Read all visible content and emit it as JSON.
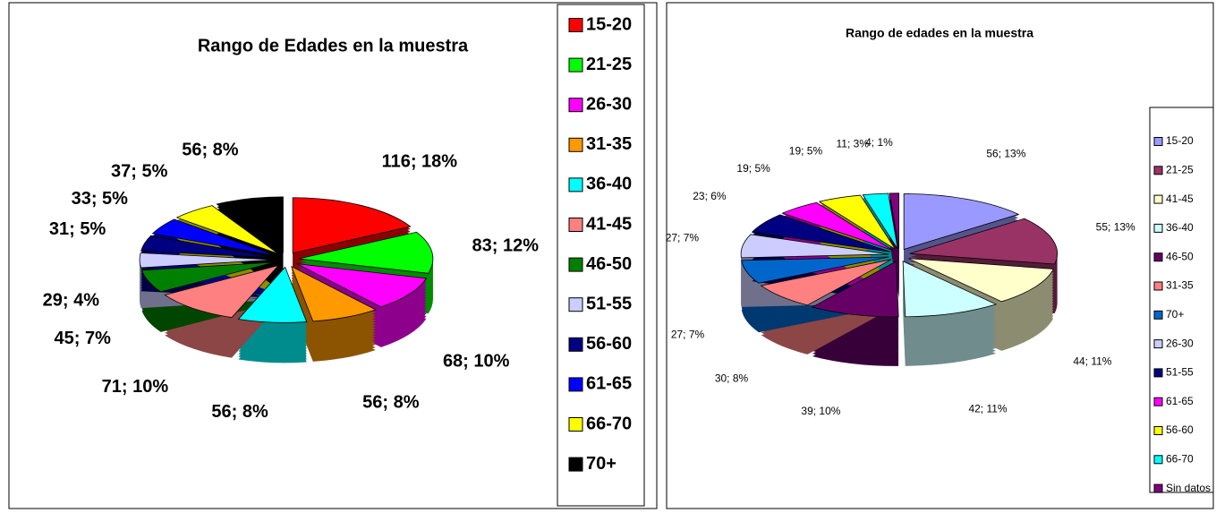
{
  "chart_data": [
    {
      "type": "pie",
      "title": "Rango de Edades en la muestra",
      "categories": [
        "15-20",
        "21-25",
        "26-30",
        "31-35",
        "36-40",
        "41-45",
        "46-50",
        "51-55",
        "56-60",
        "61-65",
        "66-70",
        "70+"
      ],
      "values": [
        116,
        83,
        68,
        56,
        56,
        71,
        45,
        29,
        31,
        33,
        37,
        56
      ],
      "value_labels": [
        "116; 18%",
        "83; 12%",
        "68; 10%",
        "56; 8%",
        "56; 8%",
        "71; 10%",
        "45; 7%",
        "29; 4%",
        "31; 5%",
        "33; 5%",
        "37; 5%",
        "56; 8%"
      ],
      "colors": [
        "#ff0000",
        "#00ff00",
        "#ff00ff",
        "#ff9900",
        "#00ffff",
        "#ff8080",
        "#008000",
        "#ccccff",
        "#000080",
        "#0000ff",
        "#ffff00",
        "#000000"
      ],
      "legend": "right"
    },
    {
      "type": "pie",
      "title": "Rango de edades en la muestra",
      "categories": [
        "15-20",
        "21-25",
        "41-45",
        "36-40",
        "46-50",
        "31-35",
        "70+",
        "26-30",
        "51-55",
        "61-65",
        "56-60",
        "66-70",
        "Sin datos"
      ],
      "values": [
        56,
        55,
        44,
        42,
        39,
        30,
        27,
        27,
        23,
        19,
        19,
        11,
        4
      ],
      "value_labels": [
        "56; 13%",
        "55; 13%",
        "44; 11%",
        "42; 11%",
        "39; 10%",
        "30; 8%",
        "27; 7%",
        "27; 7%",
        "23; 6%",
        "19; 5%",
        "19; 5%",
        "11; 3%",
        "4; 1%"
      ],
      "colors": [
        "#9999ff",
        "#993366",
        "#ffffcc",
        "#ccffff",
        "#660066",
        "#ff8080",
        "#0066cc",
        "#ccccff",
        "#000080",
        "#ff00ff",
        "#ffff00",
        "#00ffff",
        "#800080"
      ],
      "legend": "right"
    }
  ]
}
